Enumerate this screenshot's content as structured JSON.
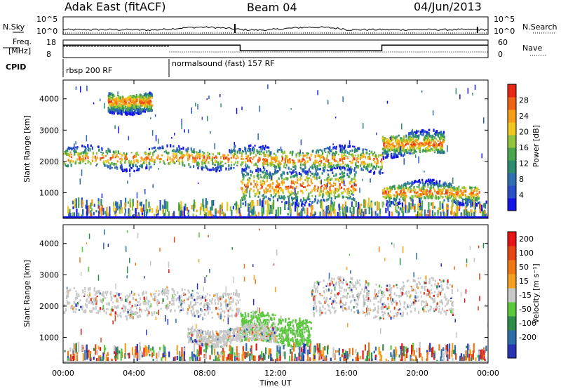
{
  "header": {
    "station": "Adak East (fitACF)",
    "beam": "Beam 04",
    "date": "04/Jun/2013"
  },
  "summary": {
    "nsky_label": "N.Sky",
    "nsky_ticks": [
      "10^5",
      "10^0"
    ],
    "nsearch_label": "N.Search",
    "nsearch_ticks": [
      "10^5",
      "10^0"
    ],
    "freq_label_1": "Freq.",
    "freq_label_2": "[MHz]",
    "freq_ticks": [
      "18",
      "8"
    ],
    "nave_label": "Nave",
    "nave_ticks": [
      "60",
      "0"
    ],
    "cpid_label": "CPID",
    "cpid_segments": [
      {
        "label": "rbsp 200 RF",
        "start_hour": 0,
        "end_hour": 6
      },
      {
        "label": "normalsound (fast) 157 RF",
        "start_hour": 6,
        "end_hour": 24
      }
    ],
    "nave_steps": [
      {
        "start_hour": 0,
        "end_hour": 10,
        "value": 42
      },
      {
        "start_hour": 10,
        "end_hour": 18,
        "value": 22
      },
      {
        "start_hour": 18,
        "end_hour": 24,
        "value": 42
      }
    ]
  },
  "chart_data": [
    {
      "type": "heatmap",
      "title": "Power",
      "ylabel": "Slant Range [km]",
      "xlabel": "",
      "x_range_hours": [
        0,
        24
      ],
      "ylim": [
        180,
        4600
      ],
      "y_ticks": [
        1000,
        2000,
        3000,
        4000
      ],
      "colorbar": {
        "label": "Power [dB]",
        "range": [
          0,
          32
        ],
        "ticks": [
          4,
          8,
          12,
          16,
          20,
          24,
          28
        ],
        "colors": [
          "#1414e6",
          "#2850c8",
          "#2f6fae",
          "#2e8c6e",
          "#4aa64a",
          "#8fc43c",
          "#f0c81e",
          "#f59c19",
          "#ef6414",
          "#e62814"
        ]
      },
      "echo_regions": [
        {
          "name": "main band",
          "start_hour": 0,
          "end_hour": 10,
          "range_km": [
            1800,
            2400
          ]
        },
        {
          "name": "main band",
          "start_hour": 10,
          "end_hour": 18,
          "range_km": [
            1700,
            2400
          ]
        },
        {
          "name": "upper band",
          "start_hour": 18,
          "end_hour": 21.5,
          "range_km": [
            2200,
            2900
          ]
        },
        {
          "name": "lower band",
          "start_hour": 10,
          "end_hour": 16.5,
          "range_km": [
            700,
            1700
          ]
        },
        {
          "name": "lower band",
          "start_hour": 18,
          "end_hour": 23.5,
          "range_km": [
            700,
            1300
          ]
        },
        {
          "name": "far echoes",
          "start_hour": 2.5,
          "end_hour": 5,
          "range_km": [
            3600,
            4200
          ]
        },
        {
          "name": "near-range clutter",
          "start_hour": 0,
          "end_hour": 24,
          "range_km": [
            180,
            700
          ]
        }
      ]
    },
    {
      "type": "heatmap",
      "title": "Velocity",
      "ylabel": "Slant Range [km]",
      "xlabel": "Time UT",
      "x_range_hours": [
        0,
        24
      ],
      "x_tick_labels": [
        "00:00",
        "04:00",
        "08:00",
        "12:00",
        "16:00",
        "20:00",
        "00:00"
      ],
      "ylim": [
        180,
        4600
      ],
      "y_ticks": [
        1000,
        2000,
        3000,
        4000
      ],
      "colorbar": {
        "label": "Velocity [m s⁻¹]",
        "range": [
          -250,
          250
        ],
        "tick_labels": [
          "200",
          "100",
          "50",
          "15",
          "-15",
          "-50",
          "-100",
          "-200"
        ],
        "colors": [
          "#2834b4",
          "#2d6eaa",
          "#2e8c4a",
          "#5ac83c",
          "#c8c8c8",
          "#f5a01e",
          "#f07814",
          "#e64614",
          "#e61414"
        ]
      },
      "echo_regions": [
        {
          "name": "ground scatter band",
          "start_hour": 0,
          "end_hour": 10,
          "range_km": [
            1700,
            2500
          ]
        },
        {
          "name": "ionospheric echoes",
          "start_hour": 10,
          "end_hour": 14,
          "range_km": [
            800,
            1700
          ]
        },
        {
          "name": "ground scatter band",
          "start_hour": 14,
          "end_hour": 22,
          "range_km": [
            1700,
            2800
          ]
        },
        {
          "name": "ground scatter low",
          "start_hour": 7,
          "end_hour": 12,
          "range_km": [
            800,
            1300
          ]
        },
        {
          "name": "near-range clutter",
          "start_hour": 0,
          "end_hour": 24,
          "range_km": [
            180,
            700
          ]
        }
      ]
    }
  ]
}
